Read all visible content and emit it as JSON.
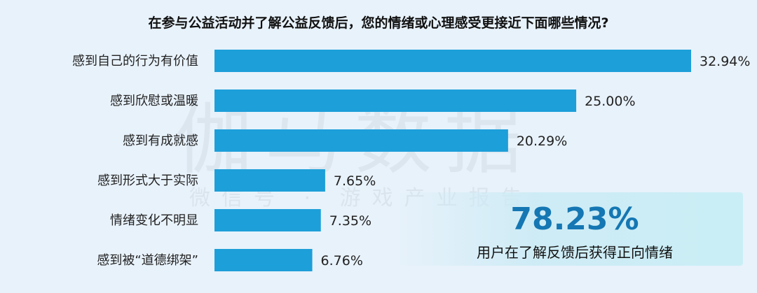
{
  "title": "在参与公益活动并了解公益反馈后，您的情绪或心理感受更接近下面哪些情况?",
  "watermark": {
    "main": "伽马数据",
    "sub": "微信号 · 游戏产业报告"
  },
  "callout": {
    "value": "78.23%",
    "label": "用户在了解反馈后获得正向情绪"
  },
  "colors": {
    "bar": "#1d9fd9",
    "accent": "#1577b3",
    "background": "#e8f2fb"
  },
  "chart_data": {
    "type": "bar",
    "orientation": "horizontal",
    "categories": [
      "感到自己的行为有价值",
      "感到欣慰或温暖",
      "感到有成就感",
      "感到形式大于实际",
      "情绪变化不明显",
      "感到被“道德绑架”"
    ],
    "values": [
      32.94,
      25.0,
      20.29,
      7.65,
      7.35,
      6.76
    ],
    "value_labels": [
      "32.94%",
      "25.00%",
      "20.29%",
      "7.65%",
      "7.35%",
      "6.76%"
    ],
    "unit": "%",
    "xlim": [
      0,
      32.94
    ]
  }
}
